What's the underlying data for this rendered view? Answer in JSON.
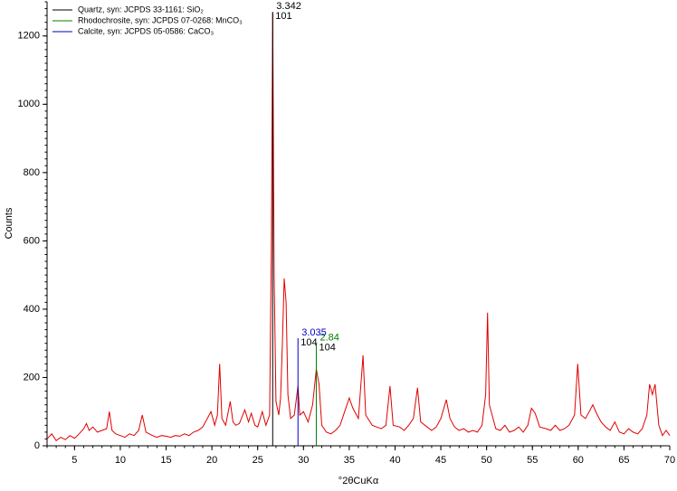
{
  "chart_data": {
    "type": "xrd",
    "x_label": "°2θCuKα",
    "y_label": "Counts",
    "xlim": [
      2,
      70
    ],
    "ylim": [
      0,
      1300
    ],
    "xticks": [
      5,
      10,
      15,
      20,
      25,
      30,
      35,
      40,
      45,
      50,
      55,
      60,
      65,
      70
    ],
    "yticks": [
      0,
      200,
      400,
      600,
      800,
      1000,
      1200
    ],
    "pattern": {
      "color": "#e00000",
      "x": [
        2,
        2.5,
        3,
        3.5,
        4,
        4.5,
        5,
        5.5,
        6,
        6.3,
        6.6,
        7,
        7.5,
        8,
        8.5,
        8.8,
        9.1,
        9.5,
        10,
        10.5,
        11,
        11.5,
        12,
        12.4,
        12.8,
        13.5,
        14,
        14.5,
        15,
        15.5,
        16,
        16.5,
        17,
        17.5,
        18,
        18.5,
        19,
        19.5,
        19.9,
        20.3,
        20.6,
        20.85,
        21.1,
        21.5,
        22,
        22.3,
        22.6,
        23,
        23.6,
        24,
        24.3,
        24.7,
        25,
        25.5,
        25.9,
        26.3,
        26.5,
        26.64,
        26.8,
        27,
        27.3,
        27.5,
        27.7,
        27.9,
        28.1,
        28.3,
        28.6,
        29,
        29.4,
        29.6,
        30,
        30.5,
        31,
        31.4,
        31.7,
        32,
        32.5,
        33,
        33.5,
        34,
        34.5,
        35,
        35.4,
        36,
        36.5,
        36.8,
        37.5,
        38,
        38.5,
        39,
        39.45,
        39.8,
        40.5,
        41,
        41.5,
        42,
        42.45,
        42.8,
        43.5,
        44,
        44.5,
        45,
        45.6,
        46,
        46.5,
        47,
        47.5,
        48,
        48.5,
        49,
        49.5,
        49.9,
        50.1,
        50.3,
        51,
        51.5,
        52,
        52.5,
        53,
        53.5,
        54,
        54.5,
        54.9,
        55.3,
        55.8,
        56.5,
        57,
        57.5,
        58,
        58.5,
        59,
        59.6,
        59.95,
        60.3,
        60.8,
        61.2,
        61.6,
        62,
        62.5,
        63,
        63.5,
        64,
        64.5,
        65,
        65.5,
        66,
        66.5,
        67,
        67.5,
        67.8,
        68.1,
        68.4,
        68.8,
        69.2,
        69.6,
        70
      ],
      "values": [
        20,
        35,
        15,
        25,
        18,
        30,
        22,
        35,
        50,
        65,
        45,
        55,
        40,
        45,
        50,
        100,
        45,
        35,
        30,
        25,
        35,
        30,
        45,
        90,
        40,
        30,
        25,
        30,
        28,
        25,
        30,
        28,
        35,
        30,
        40,
        45,
        55,
        80,
        100,
        60,
        90,
        240,
        80,
        60,
        130,
        70,
        60,
        65,
        105,
        70,
        95,
        60,
        55,
        100,
        60,
        90,
        600,
        1270,
        500,
        130,
        90,
        140,
        300,
        490,
        420,
        150,
        80,
        90,
        175,
        90,
        100,
        70,
        120,
        225,
        180,
        60,
        40,
        35,
        45,
        60,
        100,
        140,
        110,
        80,
        265,
        90,
        60,
        55,
        50,
        60,
        175,
        60,
        55,
        45,
        60,
        80,
        170,
        70,
        55,
        45,
        55,
        80,
        135,
        80,
        55,
        45,
        50,
        40,
        45,
        40,
        60,
        150,
        390,
        120,
        50,
        45,
        60,
        40,
        45,
        55,
        40,
        60,
        110,
        95,
        55,
        50,
        45,
        60,
        45,
        50,
        60,
        90,
        240,
        90,
        80,
        100,
        120,
        95,
        70,
        55,
        45,
        70,
        40,
        35,
        50,
        40,
        35,
        50,
        90,
        180,
        150,
        180,
        60,
        30,
        45,
        30
      ]
    },
    "references": [
      {
        "name": "Quartz, syn: JCPDS 33-1161: SiO₂",
        "color": "#000000",
        "x": [
          26.64
        ],
        "values": [
          1270
        ],
        "d_label": "3.342",
        "hkl_label": "101"
      },
      {
        "name": "Rhodochrosite, syn: JCPDS 07-0268: MnCO₃",
        "color": "#008000",
        "x": [
          31.4
        ],
        "values": [
          300
        ],
        "d_label": "2.84",
        "hkl_label": "104"
      },
      {
        "name": "Calcite, syn: JCPDS 05-0586: CaCO₃",
        "color": "#0000c0",
        "x": [
          29.4
        ],
        "values": [
          315
        ],
        "d_label": "3.035",
        "hkl_label": "104"
      }
    ]
  }
}
